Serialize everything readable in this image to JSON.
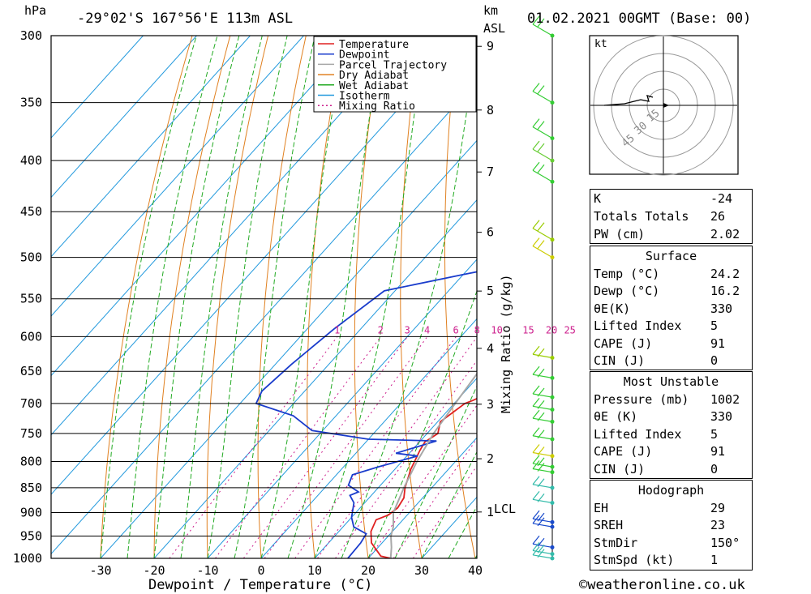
{
  "header": {
    "location": "-29°02'S 167°56'E 113m ASL",
    "datetime": "01.02.2021 00GMT (Base: 00)",
    "hpa_label": "hPa",
    "km_label": "km",
    "asl_label": "ASL"
  },
  "legend": [
    {
      "label": "Temperature",
      "color": "#e02020",
      "dash": false
    },
    {
      "label": "Dewpoint",
      "color": "#1a3ccc",
      "dash": false
    },
    {
      "label": "Parcel Trajectory",
      "color": "#a8a8a8",
      "dash": false
    },
    {
      "label": "Dry Adiabat",
      "color": "#e08020",
      "dash": false
    },
    {
      "label": "Wet Adiabat",
      "color": "#22aa22",
      "dash": false
    },
    {
      "label": "Isotherm",
      "color": "#2299dd",
      "dash": false
    },
    {
      "label": "Mixing Ratio",
      "color": "#cc1e8c",
      "dash": true
    }
  ],
  "chart_data": {
    "type": "line",
    "xlabel": "Dewpoint / Temperature (°C)",
    "ylabel": "hPa",
    "right_axis_label": "Mixing Ratio (g/kg)",
    "pressure_levels": [
      300,
      350,
      400,
      450,
      500,
      550,
      600,
      650,
      700,
      750,
      800,
      850,
      900,
      950,
      1000
    ],
    "temperature_ticks": [
      -30,
      -20,
      -10,
      0,
      10,
      20,
      30,
      40
    ],
    "height_ticks_km": [
      1,
      2,
      3,
      4,
      5,
      6,
      7,
      8,
      9
    ],
    "lcl_label": "LCL",
    "mixing_ratio_labels": [
      "1",
      "2",
      "3",
      "4",
      "6",
      "8",
      "10",
      "15",
      "20",
      "25"
    ],
    "series": [
      {
        "name": "Temperature",
        "color": "#e02020",
        "points": [
          [
            24.2,
            1000
          ],
          [
            22,
            995
          ],
          [
            18,
            965
          ],
          [
            16,
            940
          ],
          [
            15,
            915
          ],
          [
            16.5,
            905
          ],
          [
            17,
            890
          ],
          [
            16.5,
            870
          ],
          [
            15,
            850
          ],
          [
            13,
            815
          ],
          [
            11.5,
            780
          ],
          [
            11,
            765
          ],
          [
            12,
            750
          ],
          [
            10.5,
            730
          ],
          [
            12,
            700
          ],
          [
            13,
            695
          ],
          [
            14.5,
            685
          ],
          [
            13,
            650
          ],
          [
            11,
            600
          ],
          [
            10,
            550
          ],
          [
            8,
            500
          ],
          [
            7.5,
            495
          ],
          [
            6,
            480
          ],
          [
            4,
            455
          ],
          [
            1.5,
            425
          ],
          [
            -1,
            400
          ],
          [
            -2,
            385
          ],
          [
            -3,
            365
          ],
          [
            -4.5,
            345
          ],
          [
            -5.5,
            330
          ],
          [
            -7.5,
            315
          ],
          [
            -9,
            300
          ]
        ]
      },
      {
        "name": "Dewpoint",
        "color": "#1a3ccc",
        "points": [
          [
            16.2,
            1000
          ],
          [
            16,
            965
          ],
          [
            15.5,
            945
          ],
          [
            12,
            930
          ],
          [
            10,
            910
          ],
          [
            8,
            880
          ],
          [
            6,
            865
          ],
          [
            7,
            858
          ],
          [
            4,
            845
          ],
          [
            3,
            825
          ],
          [
            6.5,
            810
          ],
          [
            12,
            790
          ],
          [
            7.5,
            785
          ],
          [
            13,
            763
          ],
          [
            0,
            760
          ],
          [
            -12,
            745
          ],
          [
            -18,
            720
          ],
          [
            -27,
            700
          ],
          [
            -28,
            680
          ],
          [
            -27,
            640
          ],
          [
            -25,
            590
          ],
          [
            -22,
            540
          ],
          [
            -10,
            520
          ],
          [
            0,
            505
          ],
          [
            -1.5,
            500
          ],
          [
            5,
            490
          ],
          [
            -2,
            480
          ],
          [
            0,
            460
          ],
          [
            -3.5,
            445
          ],
          [
            -2,
            430
          ],
          [
            -2,
            410
          ],
          [
            -1,
            395
          ],
          [
            1,
            375
          ],
          [
            0,
            360
          ],
          [
            -2.5,
            345
          ],
          [
            -5,
            325
          ],
          [
            -8,
            300
          ]
        ]
      },
      {
        "name": "Parcel Trajectory",
        "color": "#a8a8a8",
        "points": [
          [
            24.2,
            1000
          ],
          [
            22.5,
            975
          ],
          [
            20.5,
            950
          ],
          [
            19.4,
            930
          ],
          [
            17,
            900
          ],
          [
            14.8,
            850
          ],
          [
            12.8,
            800
          ],
          [
            11.2,
            750
          ],
          [
            10.2,
            700
          ],
          [
            9.2,
            650
          ],
          [
            7.8,
            600
          ],
          [
            5.8,
            550
          ],
          [
            3.6,
            500
          ],
          [
            0.6,
            450
          ],
          [
            -3,
            400
          ],
          [
            -7,
            350
          ],
          [
            -11,
            300
          ]
        ]
      }
    ],
    "x_range": [
      -40,
      40
    ],
    "y_range": [
      300,
      1000
    ]
  },
  "wind_profile": {
    "colors": [
      "#33cc33",
      "#99cc00",
      "#33bbaa",
      "#1a4bcc"
    ],
    "levels": [
      {
        "p": 300,
        "color": "#33cc33"
      },
      {
        "p": 350,
        "color": "#33cc33"
      },
      {
        "p": 380,
        "color": "#33cc33"
      },
      {
        "p": 400,
        "color": "#66cc33"
      },
      {
        "p": 420,
        "color": "#33cc33"
      },
      {
        "p": 480,
        "color": "#99cc00"
      },
      {
        "p": 500,
        "color": "#cccc00"
      },
      {
        "p": 630,
        "color": "#99cc00"
      },
      {
        "p": 660,
        "color": "#33cc33"
      },
      {
        "p": 690,
        "color": "#33cc33"
      },
      {
        "p": 710,
        "color": "#33cc33"
      },
      {
        "p": 730,
        "color": "#33cc33"
      },
      {
        "p": 760,
        "color": "#33cc33"
      },
      {
        "p": 790,
        "color": "#cccc00"
      },
      {
        "p": 810,
        "color": "#33cc33"
      },
      {
        "p": 820,
        "color": "#33cc33"
      },
      {
        "p": 850,
        "color": "#33bbaa"
      },
      {
        "p": 880,
        "color": "#33bbaa"
      },
      {
        "p": 920,
        "color": "#1a4bcc"
      },
      {
        "p": 930,
        "color": "#1a4bcc"
      },
      {
        "p": 975,
        "color": "#1a4bcc"
      },
      {
        "p": 990,
        "color": "#33bbaa"
      },
      {
        "p": 1000,
        "color": "#33bbaa"
      }
    ]
  },
  "hodograph": {
    "unit": "kt",
    "rings": [
      "15",
      "30",
      "45"
    ]
  },
  "indices": {
    "rows": [
      {
        "k": "K",
        "v": "-24"
      },
      {
        "k": "Totals Totals",
        "v": "26"
      },
      {
        "k": "PW (cm)",
        "v": "2.02"
      }
    ]
  },
  "surface": {
    "title": "Surface",
    "rows": [
      {
        "k": "Temp (°C)",
        "v": "24.2"
      },
      {
        "k": "Dewp (°C)",
        "v": "16.2"
      },
      {
        "k": "θE(K)",
        "v": "330"
      },
      {
        "k": "Lifted Index",
        "v": "5"
      },
      {
        "k": "CAPE (J)",
        "v": "91"
      },
      {
        "k": "CIN (J)",
        "v": "0"
      }
    ]
  },
  "most_unstable": {
    "title": "Most Unstable",
    "rows": [
      {
        "k": "Pressure (mb)",
        "v": "1002"
      },
      {
        "k": "θE (K)",
        "v": "330"
      },
      {
        "k": "Lifted Index",
        "v": "5"
      },
      {
        "k": "CAPE (J)",
        "v": "91"
      },
      {
        "k": "CIN (J)",
        "v": "0"
      }
    ]
  },
  "hodograph_box": {
    "title": "Hodograph",
    "rows": [
      {
        "k": "EH",
        "v": "29"
      },
      {
        "k": "SREH",
        "v": "23"
      },
      {
        "k": "StmDir",
        "v": "150°"
      },
      {
        "k": "StmSpd (kt)",
        "v": "1"
      }
    ]
  },
  "footer": {
    "copyright": "©weatheronline.co.uk"
  }
}
